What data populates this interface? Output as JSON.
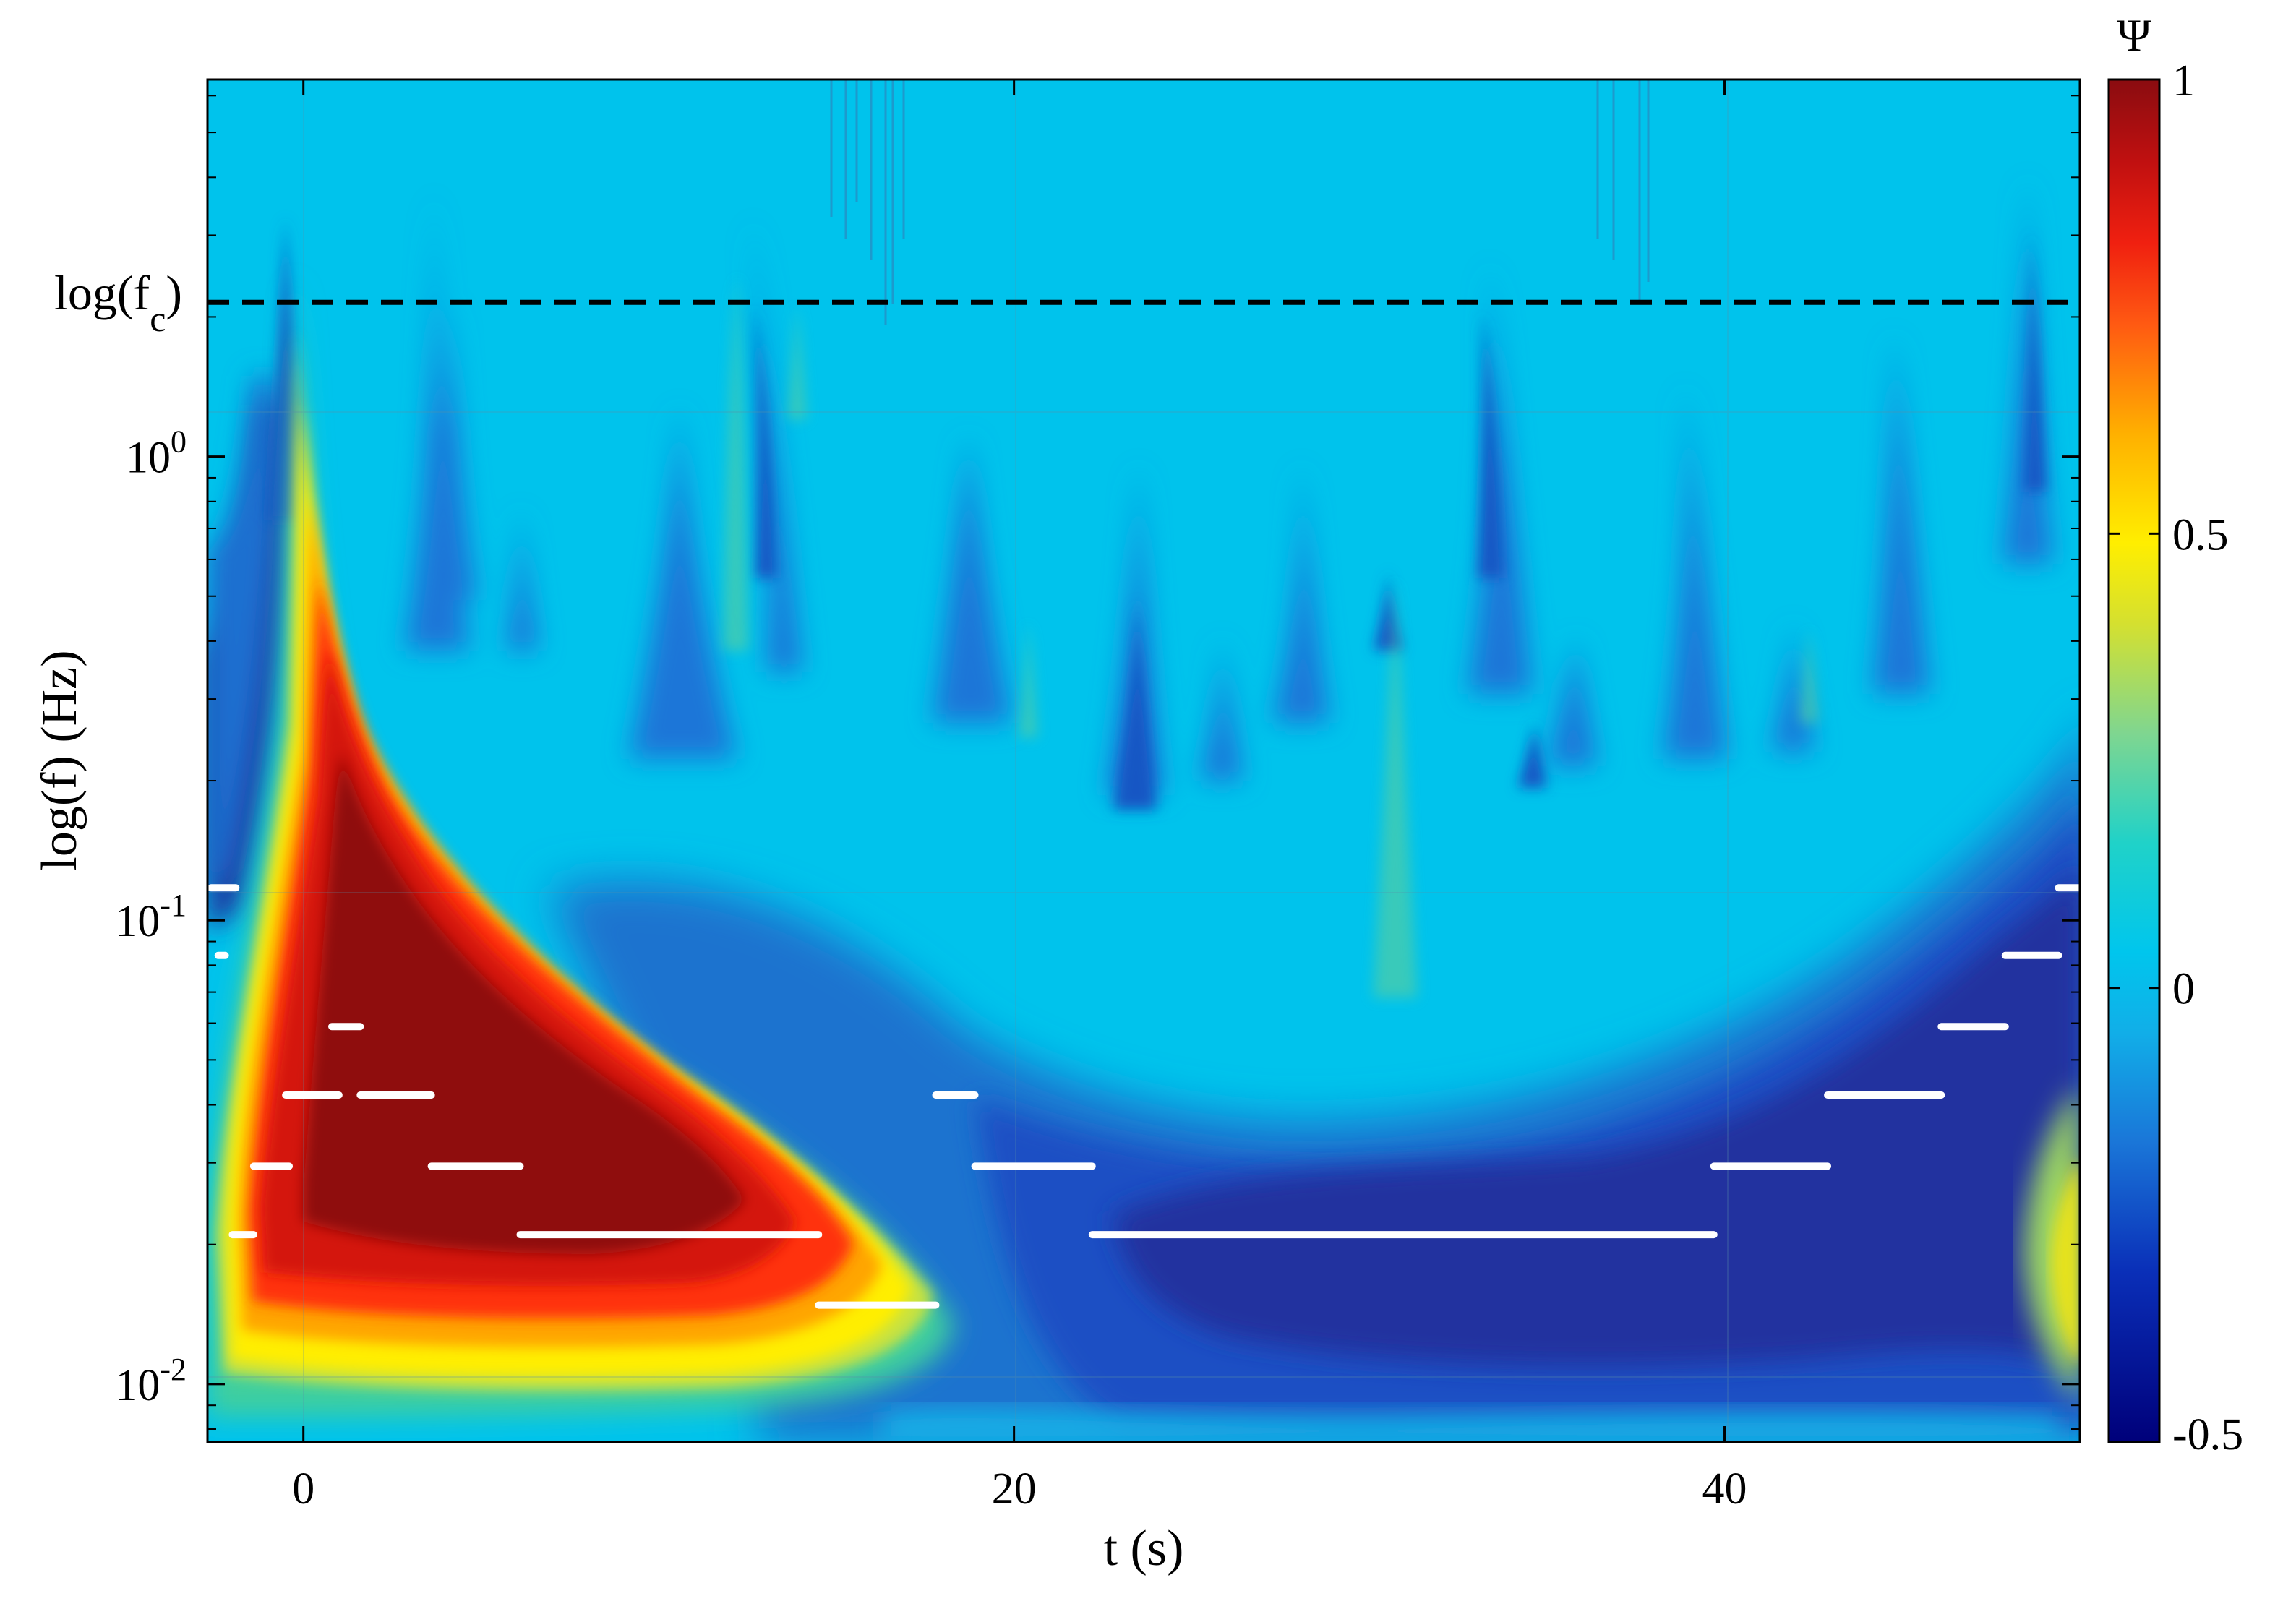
{
  "chart_data": {
    "type": "heatmap",
    "title": "",
    "xlabel": "t (s)",
    "ylabel": "log(f) (Hz)",
    "x_ticks": [
      0,
      20,
      40
    ],
    "y_ticks": [
      {
        "base": "10",
        "exp": "-2",
        "value": 0.01
      },
      {
        "base": "10",
        "exp": "-1",
        "value": 0.1
      },
      {
        "base": "10",
        "exp": "0",
        "value": 1
      }
    ],
    "y_scale": "log",
    "xlim": [
      -2.7,
      50
    ],
    "ylim": [
      0.0075,
      6.5
    ],
    "reference_line": {
      "label_main": "log(f",
      "label_sub": "c",
      "label_close": ")",
      "y": 2.15,
      "style": "dashed",
      "color": "#000000"
    },
    "colorbar": {
      "label": "Ψ",
      "min": -0.5,
      "max": 1,
      "ticks": [
        "1",
        "0.5",
        "0",
        "-0.5"
      ],
      "tick_values": [
        1,
        0.5,
        0,
        -0.5
      ],
      "colormap": "jet"
    },
    "features": {
      "positive_blob": {
        "t_start": -2,
        "t_peak": 1,
        "t_end": 17,
        "f_low": 0.012,
        "f_high": 1.9,
        "psi_max": 1
      },
      "negative_trough": {
        "t_start": 20,
        "t_end": 48,
        "f_low": 0.009,
        "f_high": 0.1,
        "psi_min": -0.5
      }
    },
    "segments": [
      {
        "t0": -2.6,
        "t1": -1.9,
        "f": 0.1175
      },
      {
        "t0": -2.4,
        "t1": -2.2,
        "f": 0.084
      },
      {
        "t0": 0.8,
        "t1": 1.6,
        "f": 0.059
      },
      {
        "t0": -0.5,
        "t1": 1.0,
        "f": 0.042
      },
      {
        "t0": 1.6,
        "t1": 3.6,
        "f": 0.042
      },
      {
        "t0": -1.4,
        "t1": -0.4,
        "f": 0.0295
      },
      {
        "t0": 3.6,
        "t1": 6.1,
        "f": 0.0295
      },
      {
        "t0": -2.0,
        "t1": -1.4,
        "f": 0.021
      },
      {
        "t0": 6.1,
        "t1": 14.5,
        "f": 0.021
      },
      {
        "t0": 14.5,
        "t1": 17.8,
        "f": 0.0148
      },
      {
        "t0": 17.8,
        "t1": 18.9,
        "f": 0.042
      },
      {
        "t0": 18.9,
        "t1": 22.2,
        "f": 0.0295
      },
      {
        "t0": 22.2,
        "t1": 39.7,
        "f": 0.021
      },
      {
        "t0": 39.7,
        "t1": 42.9,
        "f": 0.0295
      },
      {
        "t0": 42.9,
        "t1": 46.1,
        "f": 0.042
      },
      {
        "t0": 46.1,
        "t1": 47.9,
        "f": 0.059
      },
      {
        "t0": 47.9,
        "t1": 49.4,
        "f": 0.084
      },
      {
        "t0": 49.4,
        "t1": 50.0,
        "f": 0.1175
      }
    ]
  }
}
